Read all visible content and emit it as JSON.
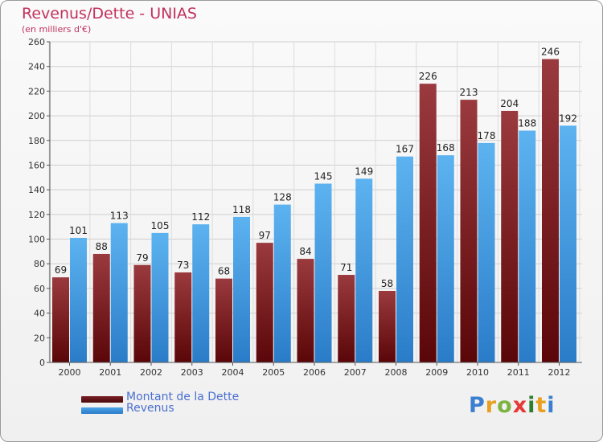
{
  "header": {
    "title": "Revenus/Dette - UNIAS",
    "subtitle": "(en milliers d'€)"
  },
  "colors": {
    "title": "#c2315f",
    "dette": "#7a1f24",
    "revenus": "#4aa3e8",
    "legend_text": "#4a6fd0"
  },
  "legend": [
    {
      "label": "Montant de la Dette",
      "color": "#7a1f24"
    },
    {
      "label": "Revenus",
      "color": "#4aa3e8"
    }
  ],
  "logo": {
    "text": "Proxiti",
    "letter_colors": [
      "#3a7fd0",
      "#e8a020",
      "#7cb342",
      "#e53935",
      "#2e7d32",
      "#e8a020",
      "#3a7fd0"
    ]
  },
  "chart_data": {
    "type": "bar",
    "title": "Revenus/Dette - UNIAS",
    "subtitle": "(en milliers d'€)",
    "categories": [
      "2000",
      "2001",
      "2002",
      "2003",
      "2004",
      "2005",
      "2006",
      "2007",
      "2008",
      "2009",
      "2010",
      "2011",
      "2012"
    ],
    "series": [
      {
        "name": "Montant de la Dette",
        "values": [
          69,
          88,
          79,
          73,
          68,
          97,
          84,
          71,
          58,
          226,
          213,
          204,
          246
        ]
      },
      {
        "name": "Revenus",
        "values": [
          101,
          113,
          105,
          112,
          118,
          128,
          145,
          149,
          167,
          168,
          178,
          188,
          192
        ]
      }
    ],
    "ylim": [
      0,
      260
    ],
    "yticks": [
      0,
      20,
      40,
      60,
      80,
      100,
      120,
      140,
      160,
      180,
      200,
      220,
      240,
      260
    ],
    "grid": true,
    "legend_position": "bottom-left"
  }
}
